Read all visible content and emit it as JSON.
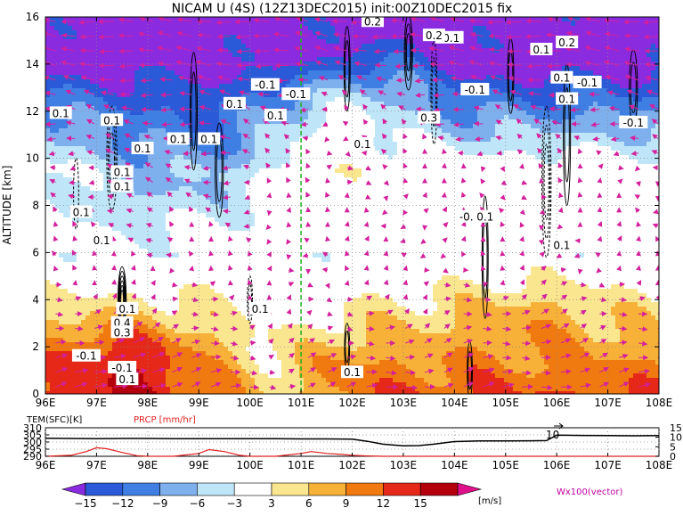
{
  "title": "NICAM U (4S) (12Z13DEC2015) init:00Z10DEC2015 fix",
  "chart_data": [
    {
      "type": "heatmap",
      "title": "NICAM U (4S) (12Z13DEC2015) init:00Z10DEC2015 fix",
      "xlabel": "",
      "ylabel": "ALTITUDE [km]",
      "xlim": [
        96,
        108
      ],
      "ylim": [
        0,
        16
      ],
      "x_ticks": [
        96,
        97,
        98,
        99,
        100,
        101,
        102,
        103,
        104,
        105,
        106,
        107,
        108
      ],
      "x_tick_labels": [
        "96E",
        "97E",
        "98E",
        "99E",
        "100E",
        "101E",
        "102E",
        "103E",
        "104E",
        "105E",
        "106E",
        "107E",
        "108E"
      ],
      "y_ticks": [
        0,
        2,
        4,
        6,
        8,
        10,
        12,
        14,
        16
      ],
      "y_tick_labels": [
        "0",
        "2",
        "4",
        "6",
        "8",
        "10",
        "12",
        "14",
        "16"
      ],
      "grid": true,
      "marker_line_x": 101,
      "marker_line_color": "#20b020",
      "color_levels": [
        -15,
        -12,
        -9,
        -6,
        -3,
        3,
        6,
        9,
        12,
        15
      ],
      "color_level_labels": [
        "-15",
        "-12",
        "-9",
        "-6",
        "-3",
        "3",
        "6",
        "9",
        "12",
        "15"
      ],
      "colors": [
        "#8a2be0",
        "#2a5ad8",
        "#3f7fe4",
        "#7fb0ee",
        "#bfe6f8",
        "#ffffff",
        "#fbe690",
        "#f7b038",
        "#f07a10",
        "#e62818",
        "#b4000c",
        "#e0108c"
      ],
      "colorbar_unit": "[m/s]",
      "vector_label": "Wx100(vector)",
      "contour_labels": [
        {
          "text": "0.1",
          "x": 97.3,
          "y": 11.6
        },
        {
          "text": "0.1",
          "x": 97.5,
          "y": 9.4
        },
        {
          "text": "0.1",
          "x": 97.9,
          "y": 10.4
        },
        {
          "text": "0.1",
          "x": 97.5,
          "y": 8.8
        },
        {
          "text": "0.1",
          "x": 96.7,
          "y": 7.7
        },
        {
          "text": "0.1",
          "x": 98.6,
          "y": 10.8
        },
        {
          "text": "0.1",
          "x": 99.2,
          "y": 10.8
        },
        {
          "text": "0.1",
          "x": 99.7,
          "y": 12.3
        },
        {
          "text": "0.1",
          "x": 100.5,
          "y": 11.8
        },
        {
          "text": "-0.1",
          "x": 100.9,
          "y": 12.7
        },
        {
          "text": "-0.1",
          "x": 100.3,
          "y": 13.1
        },
        {
          "text": "-0.1",
          "x": 103.9,
          "y": 15.1
        },
        {
          "text": "0.1",
          "x": 96.3,
          "y": 11.9
        },
        {
          "text": "0.1",
          "x": 97.1,
          "y": 6.5
        },
        {
          "text": "0.1",
          "x": 97.6,
          "y": 3.6
        },
        {
          "text": "0.4",
          "x": 97.5,
          "y": 3.0
        },
        {
          "text": "0.3",
          "x": 97.5,
          "y": 2.6
        },
        {
          "text": "-0.1",
          "x": 96.8,
          "y": 1.6
        },
        {
          "text": "-0.1",
          "x": 97.5,
          "y": 1.1
        },
        {
          "text": "0.1",
          "x": 97.6,
          "y": 0.6
        },
        {
          "text": "0.1",
          "x": 100.2,
          "y": 3.6
        },
        {
          "text": "0.1",
          "x": 102.0,
          "y": 0.9
        },
        {
          "text": "0.1",
          "x": 102.2,
          "y": 10.6
        },
        {
          "text": "0.2",
          "x": 102.4,
          "y": 15.8
        },
        {
          "text": "0.2",
          "x": 103.6,
          "y": 15.2
        },
        {
          "text": "0.3",
          "x": 103.5,
          "y": 11.7
        },
        {
          "text": "-0.1",
          "x": 104.4,
          "y": 12.9
        },
        {
          "text": "-0.1",
          "x": 104.3,
          "y": 7.5
        },
        {
          "text": "0.1",
          "x": 104.6,
          "y": 7.5
        },
        {
          "text": "0.1",
          "x": 105.7,
          "y": 14.6
        },
        {
          "text": "0.1",
          "x": 106.1,
          "y": 13.4
        },
        {
          "text": "0.1",
          "x": 106.2,
          "y": 12.5
        },
        {
          "text": "0.2",
          "x": 106.2,
          "y": 14.9
        },
        {
          "text": "-0.1",
          "x": 106.6,
          "y": 13.2
        },
        {
          "text": "-0.1",
          "x": 107.5,
          "y": 11.5
        },
        {
          "text": "0.1",
          "x": 106.1,
          "y": 6.3
        }
      ]
    },
    {
      "type": "line",
      "title": "",
      "xlim": [
        96,
        108
      ],
      "x_ticks": [
        96,
        97,
        98,
        99,
        100,
        101,
        102,
        103,
        104,
        105,
        106,
        107,
        108
      ],
      "x_tick_labels": [
        "96E",
        "97E",
        "98E",
        "99E",
        "100E",
        "101E",
        "102E",
        "103E",
        "104E",
        "105E",
        "106E",
        "107E",
        "108E"
      ],
      "left_axis_label": "TEM(SFC)[K]",
      "left_axis_color": "#000000",
      "left_ticks": [
        "310",
        "305",
        "300",
        "295",
        "290"
      ],
      "left_ylim": [
        290,
        310
      ],
      "right_axis_label": "PRCP [mm/hr]",
      "right_axis_color": "#e02020",
      "right_ticks": [
        "15",
        "10",
        "5",
        "0"
      ],
      "right_ylim": [
        0,
        15
      ],
      "series": [
        {
          "name": "TEM(SFC)[K]",
          "color": "#000000",
          "x": [
            96,
            96.5,
            97,
            97.5,
            98,
            98.5,
            99,
            99.5,
            100,
            100.5,
            101,
            101.5,
            102,
            102.3,
            102.6,
            103,
            103.3,
            103.6,
            104,
            104.5,
            105,
            105.5,
            105.8,
            106,
            106.5,
            107,
            107.5,
            108
          ],
          "values": [
            302.6,
            302.5,
            302.4,
            302.5,
            302.5,
            302.4,
            302.4,
            302.4,
            302.3,
            302.3,
            302.2,
            302.2,
            302.0,
            300.5,
            298.5,
            297.3,
            297.5,
            298.5,
            300.3,
            300.8,
            300.8,
            300.9,
            301.0,
            304.8,
            304.6,
            304.5,
            304.4,
            304.5
          ]
        },
        {
          "name": "PRCP [mm/hr]",
          "color": "#e02020",
          "x": [
            96,
            96.5,
            96.8,
            97,
            97.2,
            97.5,
            97.8,
            98,
            98.5,
            99,
            99.2,
            99.5,
            99.8,
            100,
            100.5,
            101,
            101.2,
            101.5,
            101.8,
            102,
            102.3,
            102.6,
            103,
            104,
            105,
            106,
            107,
            108
          ],
          "values": [
            0,
            0.5,
            2.5,
            4.5,
            4.0,
            2.0,
            0.3,
            0,
            0,
            1.5,
            3.5,
            2.5,
            0.5,
            0,
            0,
            1.5,
            2.5,
            1.5,
            1.0,
            0.5,
            0.2,
            0,
            0,
            0,
            0,
            0,
            0,
            0
          ]
        }
      ],
      "annotation": "10"
    }
  ]
}
